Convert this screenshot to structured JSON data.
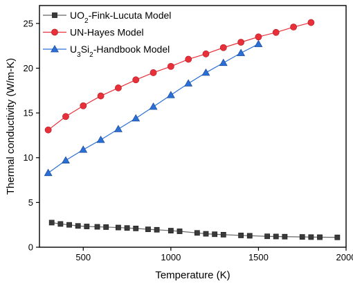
{
  "chart_data": {
    "type": "line",
    "xlabel": "Temperature (K)",
    "ylabel": "Thermal conductivity (W/m-K)",
    "xlim": [
      250,
      2000
    ],
    "ylim": [
      0,
      27
    ],
    "xticks": [
      500,
      1000,
      1500,
      2000
    ],
    "yticks": [
      0,
      5,
      10,
      15,
      20,
      25
    ],
    "grid": false,
    "legend_position": "top-left",
    "series": [
      {
        "name": "UO2-Fink-Lucuta Model",
        "name_parts": [
          {
            "t": "UO"
          },
          {
            "t": "2",
            "sub": true
          },
          {
            "t": "-Fink-Lucuta Model"
          }
        ],
        "marker": "square",
        "color": "#3a3a3a",
        "line_color": "#666666",
        "x": [
          320,
          370,
          420,
          470,
          520,
          580,
          630,
          700,
          750,
          800,
          870,
          920,
          1000,
          1050,
          1150,
          1200,
          1250,
          1300,
          1400,
          1450,
          1550,
          1600,
          1650,
          1750,
          1800,
          1850,
          1950
        ],
        "y": [
          2.75,
          2.6,
          2.5,
          2.38,
          2.32,
          2.28,
          2.25,
          2.2,
          2.15,
          2.1,
          2.0,
          1.95,
          1.85,
          1.78,
          1.6,
          1.5,
          1.45,
          1.4,
          1.32,
          1.28,
          1.22,
          1.2,
          1.18,
          1.15,
          1.13,
          1.12,
          1.1
        ]
      },
      {
        "name": "UN-Hayes Model",
        "name_parts": [
          {
            "t": "UN-Hayes Model"
          }
        ],
        "marker": "circle",
        "color": "#e8303a",
        "line_color": "#e8303a",
        "x": [
          300,
          400,
          500,
          600,
          700,
          800,
          900,
          1000,
          1100,
          1200,
          1300,
          1400,
          1500,
          1600,
          1700,
          1800
        ],
        "y": [
          13.1,
          14.6,
          15.8,
          16.9,
          17.8,
          18.7,
          19.5,
          20.2,
          21.0,
          21.6,
          22.3,
          22.9,
          23.5,
          24.0,
          24.6,
          25.1
        ]
      },
      {
        "name": "U3Si2-Handbook Model",
        "name_parts": [
          {
            "t": "U"
          },
          {
            "t": "3",
            "sub": true
          },
          {
            "t": "Si"
          },
          {
            "t": "2",
            "sub": true
          },
          {
            "t": "-Handbook Model"
          }
        ],
        "marker": "triangle",
        "color": "#2a6fd6",
        "line_color": "#2a6fd6",
        "x": [
          300,
          400,
          500,
          600,
          700,
          800,
          900,
          1000,
          1100,
          1200,
          1300,
          1400,
          1500
        ],
        "y": [
          8.3,
          9.7,
          10.9,
          12.0,
          13.2,
          14.4,
          15.7,
          17.0,
          18.3,
          19.5,
          20.6,
          21.7,
          22.7
        ]
      }
    ]
  }
}
